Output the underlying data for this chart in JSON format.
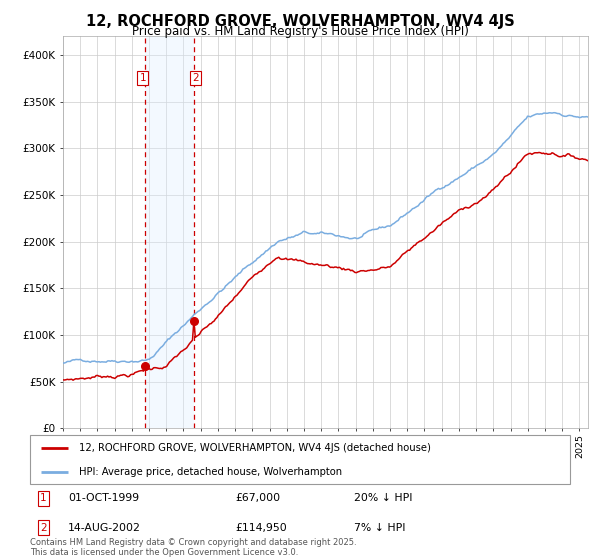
{
  "title": "12, ROCHFORD GROVE, WOLVERHAMPTON, WV4 4JS",
  "subtitle": "Price paid vs. HM Land Registry's House Price Index (HPI)",
  "legend_line1": "12, ROCHFORD GROVE, WOLVERHAMPTON, WV4 4JS (detached house)",
  "legend_line2": "HPI: Average price, detached house, Wolverhampton",
  "transaction1_date": "01-OCT-1999",
  "transaction1_price": "£67,000",
  "transaction1_hpi": "20% ↓ HPI",
  "transaction2_date": "14-AUG-2002",
  "transaction2_price": "£114,950",
  "transaction2_hpi": "7% ↓ HPI",
  "footer": "Contains HM Land Registry data © Crown copyright and database right 2025.\nThis data is licensed under the Open Government Licence v3.0.",
  "line_color_red": "#cc0000",
  "line_color_blue": "#7aade0",
  "shaded_region_color": "#ddeeff",
  "vline_color": "#cc0000",
  "ylim": [
    0,
    420000
  ],
  "yticks": [
    0,
    50000,
    100000,
    150000,
    200000,
    250000,
    300000,
    350000,
    400000
  ],
  "ytick_labels": [
    "£0",
    "£50K",
    "£100K",
    "£150K",
    "£200K",
    "£250K",
    "£300K",
    "£350K",
    "£400K"
  ],
  "background_color": "#ffffff",
  "grid_color": "#cccccc",
  "t1_year": 1999.75,
  "t2_year": 2002.583,
  "t1_price": 67000,
  "t2_price": 114950
}
